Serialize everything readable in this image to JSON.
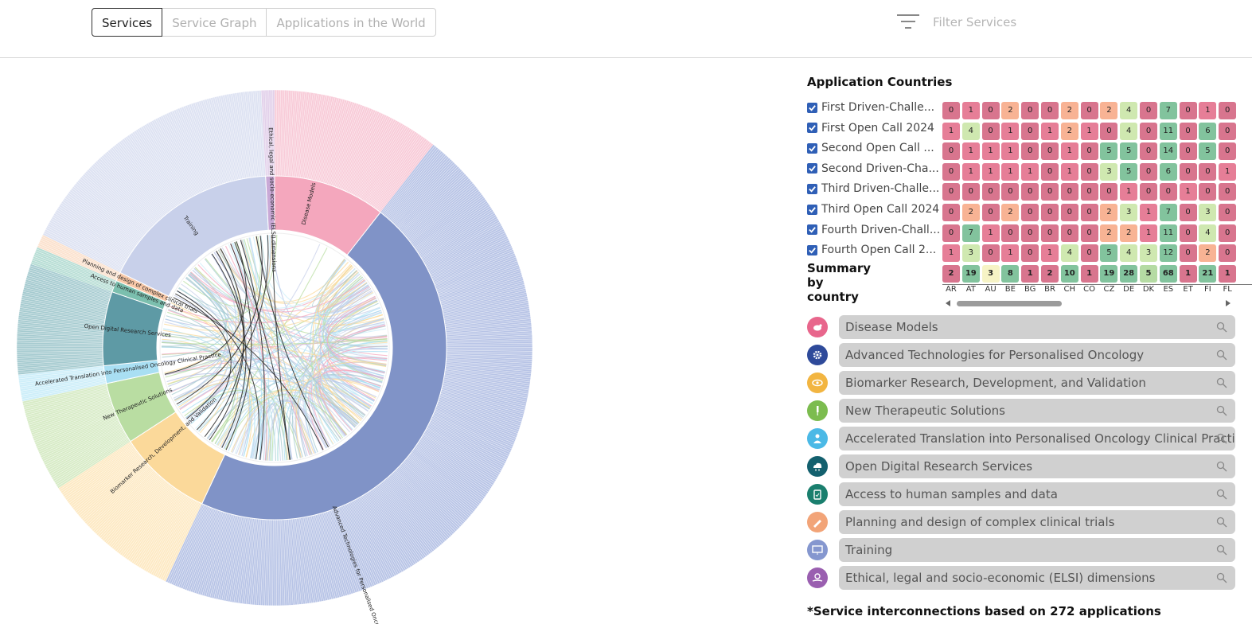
{
  "tabs": [
    {
      "label": "Services",
      "active": true
    },
    {
      "label": "Service Graph",
      "active": false
    },
    {
      "label": "Applications in the World",
      "active": false
    }
  ],
  "filter": {
    "placeholder": "Filter Services",
    "icon": "filter-lines-icon"
  },
  "chart": {
    "outer_labels": [
      "Disease Models",
      "Advanced Technologies for Personalised Oncology",
      "Biomarker Research, Development, and Validation",
      "New Therapeutic Solutions",
      "Accelerated Translation into Personalised Oncology Clinical Practice",
      "Open Digital Research Services",
      "Access to human samples and data",
      "Planning and design of complex clinical trials",
      "Training",
      "Ethical, legal and socio-economic (ELSI) dimensions"
    ]
  },
  "heatmap": {
    "title": "Application Countries",
    "rows": [
      "First Driven-Challe...",
      "First Open Call 2024",
      "Second Open Call ...",
      "Second Driven-Cha...",
      "Third Driven-Challe...",
      "Third Open Call 2024",
      "Fourth Driven-Chall...",
      "Fourth Open Call 2..."
    ],
    "summary_label": "Summary by country",
    "columns": [
      "AR",
      "AT",
      "AU",
      "BE",
      "BG",
      "BR",
      "CH",
      "CO",
      "CZ",
      "DE",
      "DK",
      "ES",
      "ET",
      "FI",
      "FL"
    ],
    "values": [
      [
        0,
        1,
        0,
        2,
        0,
        0,
        2,
        0,
        2,
        4,
        0,
        7,
        0,
        1,
        0
      ],
      [
        1,
        4,
        0,
        1,
        0,
        1,
        2,
        1,
        0,
        4,
        0,
        11,
        0,
        6,
        0
      ],
      [
        0,
        1,
        1,
        1,
        0,
        0,
        1,
        0,
        5,
        5,
        0,
        14,
        0,
        5,
        0
      ],
      [
        0,
        1,
        1,
        1,
        1,
        0,
        1,
        0,
        3,
        5,
        0,
        6,
        0,
        0,
        1
      ],
      [
        0,
        0,
        0,
        0,
        0,
        0,
        0,
        0,
        0,
        1,
        0,
        0,
        1,
        0,
        0
      ],
      [
        0,
        2,
        0,
        2,
        0,
        0,
        0,
        0,
        2,
        3,
        1,
        7,
        0,
        3,
        0
      ],
      [
        0,
        7,
        1,
        0,
        0,
        0,
        0,
        0,
        2,
        2,
        1,
        11,
        0,
        4,
        0
      ],
      [
        1,
        3,
        0,
        1,
        0,
        1,
        4,
        0,
        5,
        4,
        3,
        12,
        0,
        2,
        0
      ]
    ],
    "summary": [
      2,
      19,
      3,
      8,
      1,
      2,
      10,
      1,
      19,
      28,
      5,
      68,
      1,
      21,
      1
    ]
  },
  "legend": [
    {
      "label": "Disease Models",
      "color": "#e8668c",
      "icon": "mouse-icon"
    },
    {
      "label": "Advanced Technologies for Personalised Oncology",
      "color": "#2e4a9a",
      "icon": "gear-icon"
    },
    {
      "label": "Biomarker Research, Development, and Validation",
      "color": "#f2b541",
      "icon": "eye-icon"
    },
    {
      "label": "New Therapeutic Solutions",
      "color": "#7cbc4f",
      "icon": "syringe-icon"
    },
    {
      "label": "Accelerated Translation into Personalised Oncology Clinical Practi",
      "color": "#4bb9e6",
      "icon": "doctor-icon"
    },
    {
      "label": "Open Digital Research Services",
      "color": "#13606e",
      "icon": "cloud-icon"
    },
    {
      "label": "Access to human samples and data",
      "color": "#1a7f6e",
      "icon": "clipboard-icon"
    },
    {
      "label": "Planning and design of complex clinical trials",
      "color": "#f2a478",
      "icon": "pen-icon"
    },
    {
      "label": "Training",
      "color": "#8597cf",
      "icon": "presentation-icon"
    },
    {
      "label": "Ethical, legal and socio-economic (ELSI) dimensions",
      "color": "#9a5fb0",
      "icon": "hand-coin-icon"
    }
  ],
  "footnote": "*Service interconnections based on 272 applications"
}
